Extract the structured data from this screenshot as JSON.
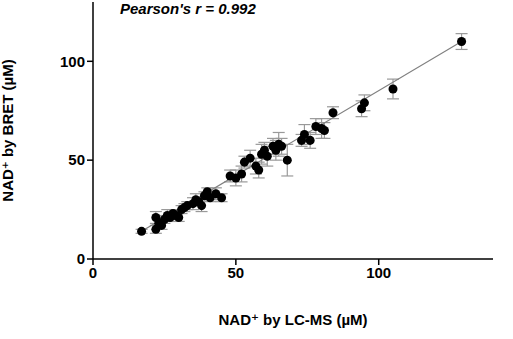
{
  "chart_data": {
    "type": "scatter",
    "annotation": "Pearson's r = 0.992",
    "x_label": "NAD⁺ by LC-MS (µM)",
    "y_label": "NAD⁺ by BRET (µM)",
    "x": [
      17,
      22,
      22,
      23,
      24,
      25,
      26,
      27,
      28,
      29,
      30,
      31,
      32,
      33,
      35,
      36,
      37,
      38,
      39,
      40,
      41,
      43,
      45,
      48,
      50,
      52,
      53,
      55,
      57,
      58,
      59,
      60,
      61,
      63,
      64,
      65,
      66,
      68,
      73,
      74,
      76,
      78,
      80,
      81,
      84,
      94,
      95,
      105,
      129
    ],
    "values": [
      14,
      15,
      21,
      18,
      17,
      20,
      22,
      21,
      23,
      22,
      21,
      25,
      26,
      27,
      28,
      30,
      29,
      27,
      32,
      34,
      31,
      33,
      31,
      42,
      41,
      43,
      49,
      51,
      47,
      45,
      53,
      55,
      52,
      57,
      55,
      58,
      57,
      50,
      60,
      63,
      60,
      67,
      66,
      65,
      74,
      76,
      79,
      86,
      110
    ],
    "errors": [
      1,
      2,
      3,
      2,
      2,
      2,
      3,
      2,
      2,
      2,
      2,
      2,
      2,
      2,
      3,
      3,
      2,
      3,
      2,
      2,
      2,
      3,
      2,
      3,
      4,
      4,
      3,
      4,
      4,
      4,
      5,
      4,
      5,
      4,
      5,
      6,
      4,
      8,
      3,
      5,
      4,
      4,
      5,
      4,
      3,
      4,
      4,
      5,
      4
    ],
    "color": "#000000",
    "marker": "circle",
    "fit_line": {
      "x": [
        17,
        129
      ],
      "values": [
        14,
        110
      ],
      "color": "#808080"
    },
    "xlim": [
      0,
      140
    ],
    "ylim": [
      0,
      130
    ],
    "xticks": [
      0,
      50,
      100
    ],
    "yticks": [
      0,
      50,
      100
    ],
    "grid": false
  }
}
